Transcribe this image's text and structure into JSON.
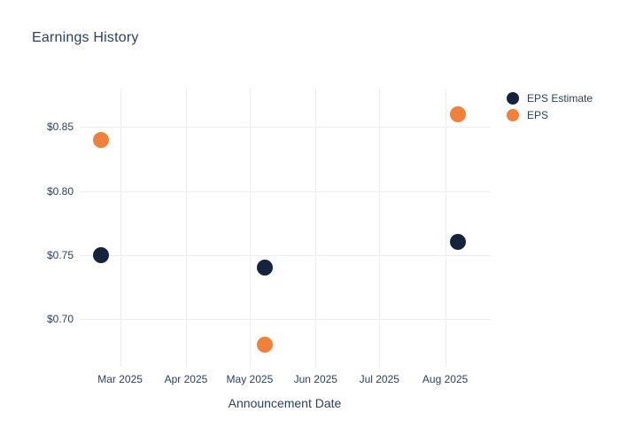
{
  "chart_data": {
    "type": "scatter",
    "title": "Earnings History",
    "xlabel": "Announcement Date",
    "ylabel": "",
    "x_type": "date",
    "x_range": [
      "2025-02-10",
      "2025-08-22"
    ],
    "y_range": [
      0.662,
      0.88
    ],
    "grid": true,
    "legend_position": "right-outside-top",
    "x_ticks": [
      {
        "date": "2025-03-01",
        "label": "Mar 2025"
      },
      {
        "date": "2025-04-01",
        "label": "Apr 2025"
      },
      {
        "date": "2025-05-01",
        "label": "May 2025"
      },
      {
        "date": "2025-06-01",
        "label": "Jun 2025"
      },
      {
        "date": "2025-07-01",
        "label": "Jul 2025"
      },
      {
        "date": "2025-08-01",
        "label": "Aug 2025"
      }
    ],
    "y_ticks": [
      {
        "value": 0.85,
        "label": "$0.85"
      },
      {
        "value": 0.8,
        "label": "$0.80"
      },
      {
        "value": 0.75,
        "label": "$0.75"
      },
      {
        "value": 0.7,
        "label": "$0.70"
      }
    ],
    "series": [
      {
        "name": "EPS Estimate",
        "color": "#15233C",
        "marker_size": 18,
        "points": [
          {
            "date": "2025-02-20",
            "value": 0.75
          },
          {
            "date": "2025-05-08",
            "value": 0.74
          },
          {
            "date": "2025-08-07",
            "value": 0.76
          }
        ]
      },
      {
        "name": "EPS",
        "color": "#F0813C",
        "marker_size": 18,
        "points": [
          {
            "date": "2025-02-20",
            "value": 0.84
          },
          {
            "date": "2025-05-08",
            "value": 0.68
          },
          {
            "date": "2025-08-07",
            "value": 0.86
          }
        ]
      }
    ],
    "colors": {
      "text": "#2A3F5F",
      "grid": "#EBEDF4",
      "background": "#FFFFFF"
    }
  }
}
